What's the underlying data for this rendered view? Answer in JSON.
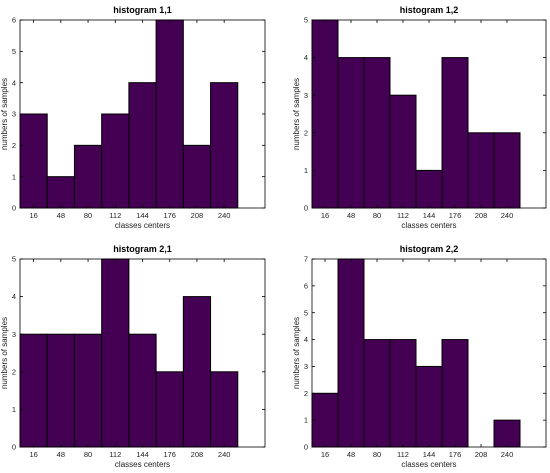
{
  "colors": {
    "bar": "#440154",
    "edge": "#000000",
    "axis": "#000000"
  },
  "chart_data": [
    {
      "type": "bar",
      "title": "histogram 1,1",
      "xlabel": "classes centers",
      "ylabel": "numbers of samples",
      "categories": [
        "16",
        "48",
        "80",
        "112",
        "144",
        "176",
        "208",
        "240"
      ],
      "values": [
        3,
        1,
        2,
        3,
        4,
        6,
        2,
        4
      ],
      "ylim": [
        0,
        6
      ],
      "yticks": [
        "0",
        "1",
        "2",
        "3",
        "4",
        "5",
        "6"
      ],
      "grid": false
    },
    {
      "type": "bar",
      "title": "histogram 1,2",
      "xlabel": "classes centers",
      "ylabel": "numbers of samples",
      "categories": [
        "16",
        "48",
        "80",
        "112",
        "144",
        "176",
        "208",
        "240"
      ],
      "values": [
        5,
        4,
        4,
        3,
        1,
        4,
        2,
        2
      ],
      "ylim": [
        0,
        5
      ],
      "yticks": [
        "0",
        "1",
        "2",
        "3",
        "4",
        "5"
      ],
      "grid": false
    },
    {
      "type": "bar",
      "title": "histogram 2,1",
      "xlabel": "classes centers",
      "ylabel": "numbers of samples",
      "categories": [
        "16",
        "48",
        "80",
        "112",
        "144",
        "176",
        "208",
        "240"
      ],
      "values": [
        3,
        3,
        3,
        5,
        3,
        2,
        4,
        2
      ],
      "ylim": [
        0,
        5
      ],
      "yticks": [
        "0",
        "1",
        "2",
        "3",
        "4",
        "5"
      ],
      "grid": false
    },
    {
      "type": "bar",
      "title": "histogram 2,2",
      "xlabel": "classes centers",
      "ylabel": "numbers of samples",
      "categories": [
        "16",
        "48",
        "80",
        "112",
        "144",
        "176",
        "208",
        "240"
      ],
      "values": [
        2,
        7,
        4,
        4,
        3,
        4,
        0,
        1
      ],
      "ylim": [
        0,
        7
      ],
      "yticks": [
        "0",
        "1",
        "2",
        "3",
        "4",
        "5",
        "6",
        "7"
      ],
      "grid": false
    }
  ]
}
